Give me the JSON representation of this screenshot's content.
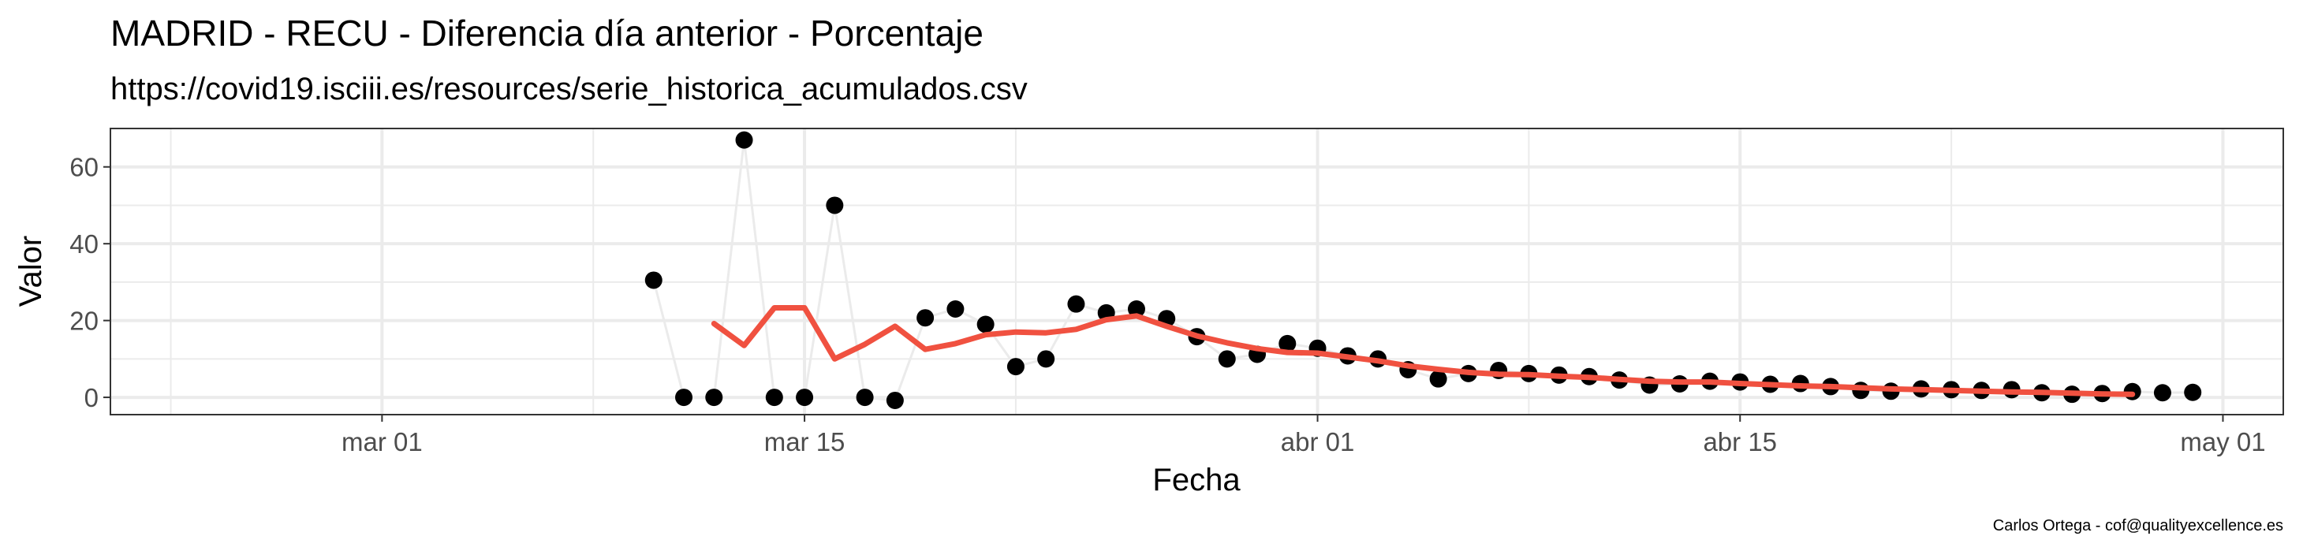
{
  "chart_data": {
    "type": "scatter",
    "title": "MADRID - RECU - Diferencia día anterior - Porcentaje",
    "subtitle": "https://covid19.isciii.es/resources/serie_historica_acumulados.csv",
    "xlabel": "Fecha",
    "ylabel": "Valor",
    "caption": "Carlos Ortega - cof@qualityexcellence.es",
    "x_range": [
      "2020-02-21",
      "2020-05-03"
    ],
    "ylim": [
      -4.5,
      70
    ],
    "x_ticks": [
      {
        "date": "2020-03-01",
        "label": "mar 01"
      },
      {
        "date": "2020-03-15",
        "label": "mar 15"
      },
      {
        "date": "2020-04-01",
        "label": "abr 01"
      },
      {
        "date": "2020-04-15",
        "label": "abr 15"
      },
      {
        "date": "2020-05-01",
        "label": "may 01"
      }
    ],
    "x_minor_ticks": [
      "2020-02-23",
      "2020-03-08",
      "2020-03-22",
      "2020-04-08",
      "2020-04-22"
    ],
    "y_ticks": [
      0,
      20,
      40,
      60
    ],
    "y_minor_ticks": [
      10,
      30,
      50
    ],
    "grid": true,
    "series": [
      {
        "type": "line",
        "color": "#ebebeb",
        "x": [
          "2020-03-10",
          "2020-03-11",
          "2020-03-12",
          "2020-03-13",
          "2020-03-14",
          "2020-03-15",
          "2020-03-16",
          "2020-03-17",
          "2020-03-18",
          "2020-03-19",
          "2020-03-20",
          "2020-03-21",
          "2020-03-22",
          "2020-03-23",
          "2020-03-24",
          "2020-03-25",
          "2020-03-26",
          "2020-03-27",
          "2020-03-28",
          "2020-03-29",
          "2020-03-30",
          "2020-03-31",
          "2020-04-01",
          "2020-04-02",
          "2020-04-03",
          "2020-04-04",
          "2020-04-05",
          "2020-04-06",
          "2020-04-07",
          "2020-04-08",
          "2020-04-09",
          "2020-04-10",
          "2020-04-11",
          "2020-04-12",
          "2020-04-13",
          "2020-04-14",
          "2020-04-15",
          "2020-04-16",
          "2020-04-17",
          "2020-04-18",
          "2020-04-19",
          "2020-04-20",
          "2020-04-21",
          "2020-04-22",
          "2020-04-23",
          "2020-04-24",
          "2020-04-25",
          "2020-04-26",
          "2020-04-27",
          "2020-04-28",
          "2020-04-29",
          "2020-04-30"
        ],
        "y": [
          30.5,
          0,
          0,
          67,
          0,
          0,
          50,
          0,
          -0.8,
          20.7,
          23,
          19,
          8,
          10,
          24.3,
          22,
          23,
          20.5,
          15.8,
          10,
          11.2,
          14,
          12.8,
          10.8,
          10,
          7.2,
          4.8,
          6.2,
          7,
          6.2,
          5.8,
          5.4,
          4.5,
          3.2,
          3.5,
          4.2,
          4,
          3.4,
          3.6,
          2.8,
          1.8,
          1.6,
          2.2,
          2,
          1.8,
          2,
          1.2,
          0.8,
          1,
          1.5,
          1.2,
          1.3
        ]
      },
      {
        "type": "scatter",
        "color": "#000000",
        "x": [
          "2020-03-10",
          "2020-03-11",
          "2020-03-12",
          "2020-03-13",
          "2020-03-14",
          "2020-03-15",
          "2020-03-16",
          "2020-03-17",
          "2020-03-18",
          "2020-03-19",
          "2020-03-20",
          "2020-03-21",
          "2020-03-22",
          "2020-03-23",
          "2020-03-24",
          "2020-03-25",
          "2020-03-26",
          "2020-03-27",
          "2020-03-28",
          "2020-03-29",
          "2020-03-30",
          "2020-03-31",
          "2020-04-01",
          "2020-04-02",
          "2020-04-03",
          "2020-04-04",
          "2020-04-05",
          "2020-04-06",
          "2020-04-07",
          "2020-04-08",
          "2020-04-09",
          "2020-04-10",
          "2020-04-11",
          "2020-04-12",
          "2020-04-13",
          "2020-04-14",
          "2020-04-15",
          "2020-04-16",
          "2020-04-17",
          "2020-04-18",
          "2020-04-19",
          "2020-04-20",
          "2020-04-21",
          "2020-04-22",
          "2020-04-23",
          "2020-04-24",
          "2020-04-25",
          "2020-04-26",
          "2020-04-27",
          "2020-04-28",
          "2020-04-29",
          "2020-04-30"
        ],
        "y": [
          30.5,
          0,
          0,
          67,
          0,
          0,
          50,
          0,
          -0.8,
          20.7,
          23,
          19,
          8,
          10,
          24.3,
          22,
          23,
          20.5,
          15.8,
          10,
          11.2,
          14,
          12.8,
          10.8,
          10,
          7.2,
          4.8,
          6.2,
          7,
          6.2,
          5.8,
          5.4,
          4.5,
          3.2,
          3.5,
          4.2,
          4,
          3.4,
          3.6,
          2.8,
          1.8,
          1.6,
          2.2,
          2,
          1.8,
          2,
          1.2,
          0.8,
          1,
          1.5,
          1.2,
          1.3
        ]
      },
      {
        "type": "line",
        "color": "#f05140",
        "x": [
          "2020-03-12",
          "2020-03-13",
          "2020-03-14",
          "2020-03-15",
          "2020-03-16",
          "2020-03-17",
          "2020-03-18",
          "2020-03-19",
          "2020-03-20",
          "2020-03-21",
          "2020-03-22",
          "2020-03-23",
          "2020-03-24",
          "2020-03-25",
          "2020-03-26",
          "2020-03-27",
          "2020-03-28",
          "2020-03-29",
          "2020-03-30",
          "2020-03-31",
          "2020-04-01",
          "2020-04-02",
          "2020-04-03",
          "2020-04-04",
          "2020-04-05",
          "2020-04-06",
          "2020-04-07",
          "2020-04-08",
          "2020-04-09",
          "2020-04-10",
          "2020-04-11",
          "2020-04-12",
          "2020-04-13",
          "2020-04-14",
          "2020-04-15",
          "2020-04-16",
          "2020-04-17",
          "2020-04-18",
          "2020-04-19",
          "2020-04-20",
          "2020-04-21",
          "2020-04-22",
          "2020-04-23",
          "2020-04-24",
          "2020-04-25",
          "2020-04-26",
          "2020-04-27",
          "2020-04-28"
        ],
        "y": [
          19.2,
          13.5,
          23.3,
          23.3,
          10,
          13.8,
          18.5,
          12.5,
          14,
          16.3,
          17,
          16.8,
          17.7,
          20.2,
          21.2,
          18.5,
          16,
          14.2,
          12.7,
          11.7,
          11.5,
          10.5,
          9.5,
          8.2,
          7.3,
          6.5,
          6,
          5.9,
          5.5,
          5.2,
          4.7,
          4.2,
          4,
          4,
          3.6,
          3.3,
          3,
          2.8,
          2.5,
          2.2,
          2,
          1.8,
          1.6,
          1.4,
          1.3,
          1.1,
          0.9,
          0.8
        ]
      }
    ]
  }
}
